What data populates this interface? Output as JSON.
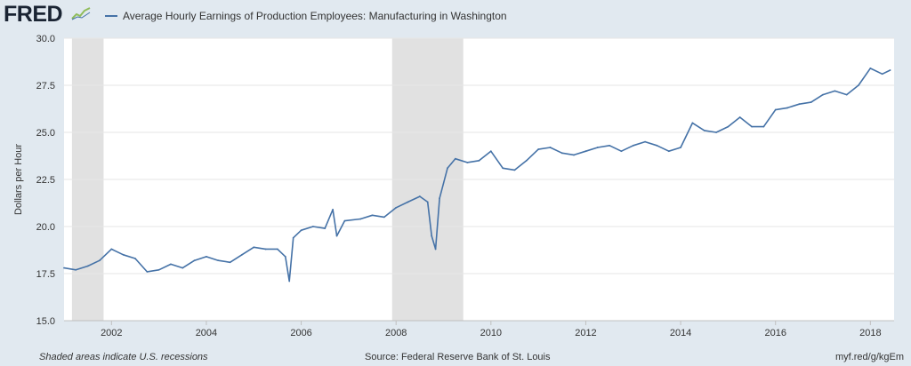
{
  "brand": {
    "logo_text": "FRED",
    "logo_icon": "fred-chart-icon"
  },
  "colors": {
    "series": "#4572a7",
    "recession": "#e1e1e1",
    "background": "#e1e9f0",
    "plot": "#ffffff",
    "grid": "#e6e6e6"
  },
  "footer": {
    "note": "Shaded areas indicate U.S. recessions",
    "source": "Source: Federal Reserve Bank of St. Louis",
    "url": "myf.red/g/kgEm"
  },
  "chart_data": {
    "type": "line",
    "title": "Average Hourly Earnings of Production Employees: Manufacturing in Washington",
    "xlabel": "",
    "ylabel": "Dollars per Hour",
    "ylim": [
      15.0,
      30.0
    ],
    "yticks": [
      "15.0",
      "17.5",
      "20.0",
      "22.5",
      "25.0",
      "27.5",
      "30.0"
    ],
    "xlim": [
      "2001-01",
      "2018-07"
    ],
    "xticks": [
      "2002",
      "2004",
      "2006",
      "2008",
      "2010",
      "2012",
      "2014",
      "2016",
      "2018"
    ],
    "grid": "horizontal",
    "recessions": [
      [
        "2001-03",
        "2001-11"
      ],
      [
        "2007-12",
        "2009-06"
      ]
    ],
    "series": [
      {
        "name": "Average Hourly Earnings of Production Employees: Manufacturing in Washington",
        "x": [
          "2001-01",
          "2001-04",
          "2001-07",
          "2001-10",
          "2002-01",
          "2002-04",
          "2002-07",
          "2002-10",
          "2003-01",
          "2003-04",
          "2003-07",
          "2003-10",
          "2004-01",
          "2004-04",
          "2004-07",
          "2004-10",
          "2005-01",
          "2005-04",
          "2005-07",
          "2005-09",
          "2005-10",
          "2005-11",
          "2006-01",
          "2006-04",
          "2006-07",
          "2006-09",
          "2006-10",
          "2006-12",
          "2007-04",
          "2007-07",
          "2007-10",
          "2008-01",
          "2008-04",
          "2008-07",
          "2008-09",
          "2008-10",
          "2008-11",
          "2008-12",
          "2009-02",
          "2009-04",
          "2009-07",
          "2009-10",
          "2010-01",
          "2010-04",
          "2010-07",
          "2010-10",
          "2011-01",
          "2011-04",
          "2011-07",
          "2011-10",
          "2012-01",
          "2012-04",
          "2012-07",
          "2012-10",
          "2013-01",
          "2013-04",
          "2013-07",
          "2013-10",
          "2014-01",
          "2014-04",
          "2014-07",
          "2014-10",
          "2015-01",
          "2015-04",
          "2015-07",
          "2015-10",
          "2016-01",
          "2016-04",
          "2016-07",
          "2016-10",
          "2017-01",
          "2017-04",
          "2017-07",
          "2017-10",
          "2018-01",
          "2018-04",
          "2018-06"
        ],
        "values": [
          17.8,
          17.7,
          17.9,
          18.2,
          18.8,
          18.5,
          18.3,
          17.6,
          17.7,
          18.0,
          17.8,
          18.2,
          18.4,
          18.2,
          18.1,
          18.5,
          18.9,
          18.8,
          18.8,
          18.4,
          17.1,
          19.4,
          19.8,
          20.0,
          19.9,
          20.9,
          19.5,
          20.3,
          20.4,
          20.6,
          20.5,
          21.0,
          21.3,
          21.6,
          21.3,
          19.5,
          18.8,
          21.5,
          23.1,
          23.6,
          23.4,
          23.5,
          24.0,
          23.1,
          23.0,
          23.5,
          24.1,
          24.2,
          23.9,
          23.8,
          24.0,
          24.2,
          24.3,
          24.0,
          24.3,
          24.5,
          24.3,
          24.0,
          24.2,
          25.5,
          25.1,
          25.0,
          25.3,
          25.8,
          25.3,
          25.3,
          26.2,
          26.3,
          26.5,
          26.6,
          27.0,
          27.2,
          27.0,
          27.5,
          28.4,
          28.1,
          28.3
        ]
      }
    ]
  }
}
